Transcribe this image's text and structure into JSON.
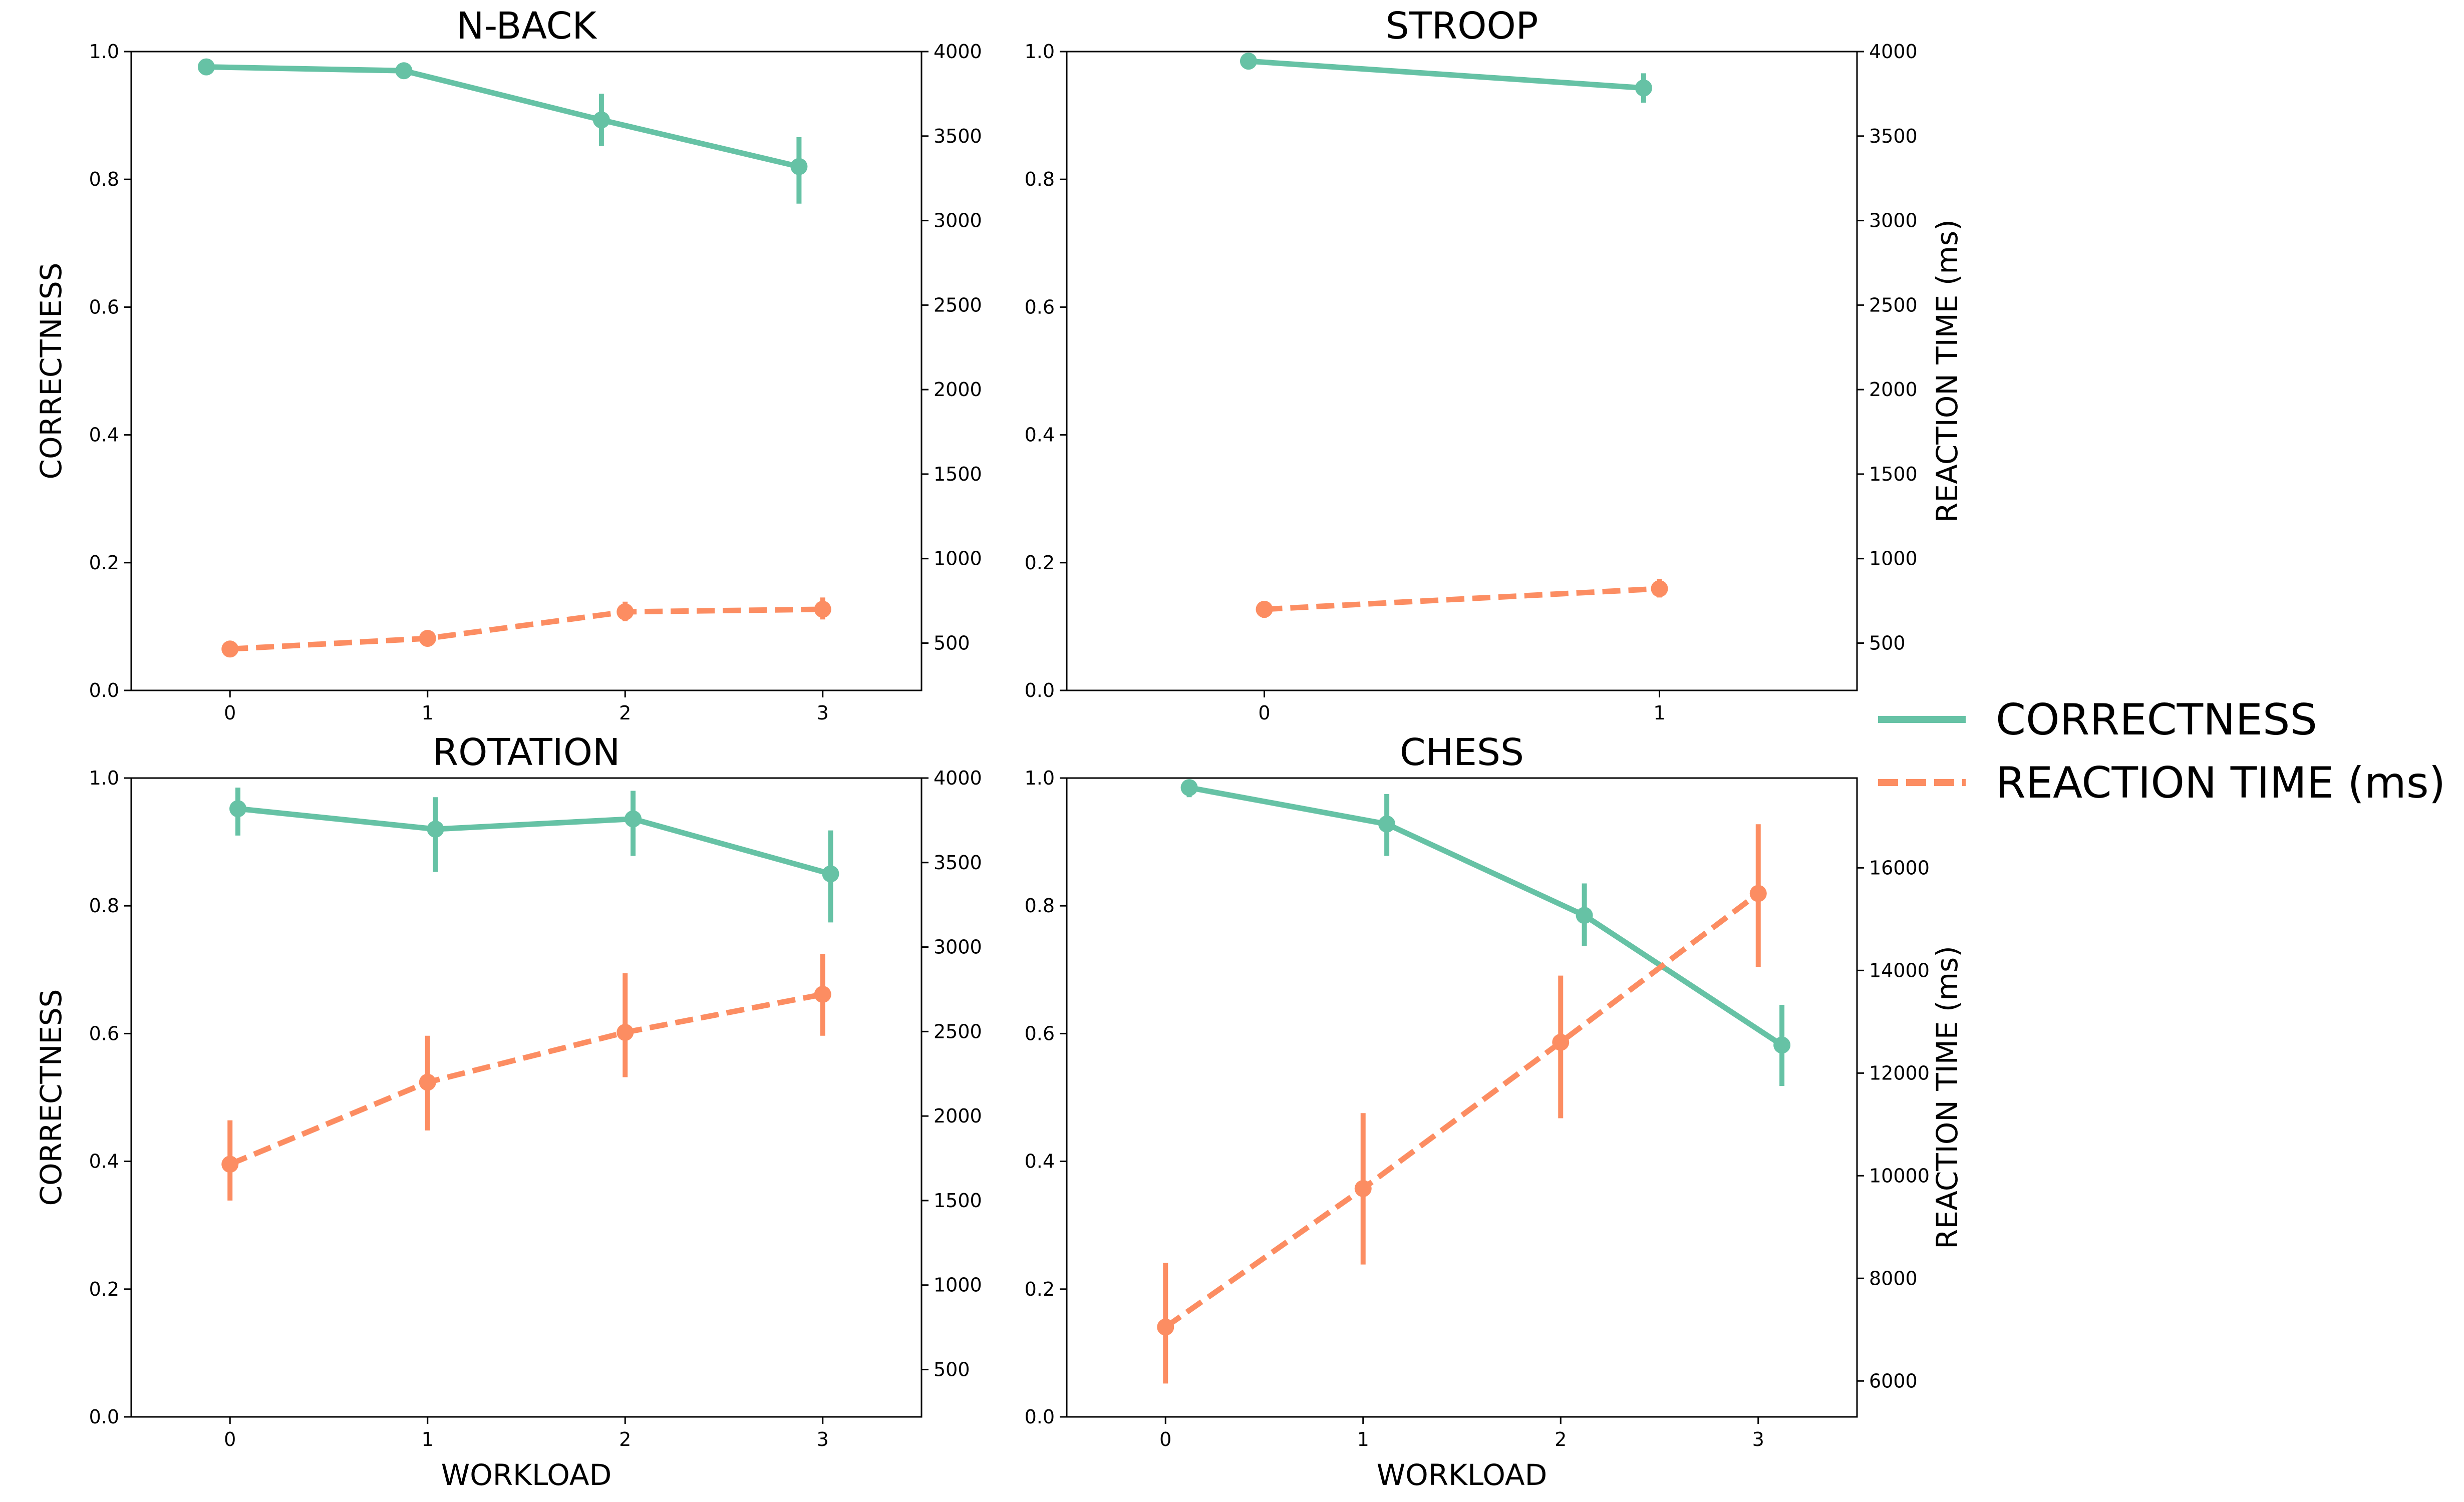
{
  "colors": {
    "correctness": "#66c2a5",
    "reaction_time": "#fc8d62"
  },
  "legend": {
    "placement": "right",
    "entries": [
      {
        "label": "CORRECTNESS",
        "style": "solid",
        "color": "#66c2a5"
      },
      {
        "label": "REACTION TIME (ms)",
        "style": "dashed",
        "color": "#fc8d62"
      }
    ]
  },
  "chart_data": [
    {
      "type": "line",
      "title": "N-BACK",
      "xlabel": "",
      "ylabel": "CORRECTNESS",
      "y2label": "",
      "x": [
        0,
        1,
        2,
        3
      ],
      "xticks": [
        "0",
        "1",
        "2",
        "3"
      ],
      "xlim": [
        -0.5,
        3.5
      ],
      "ylim": [
        0,
        1
      ],
      "yticks": [
        "0.0",
        "0.2",
        "0.4",
        "0.6",
        "0.8",
        "1.0"
      ],
      "y2lim": [
        220,
        4000
      ],
      "y2ticks": [
        "500",
        "1000",
        "1500",
        "2000",
        "2500",
        "3000",
        "3500",
        "4000"
      ],
      "series": [
        {
          "name": "CORRECTNESS",
          "axis": "left",
          "dodge": -0.12,
          "values": [
            0.976,
            0.97,
            0.893,
            0.82
          ],
          "ci_low": [
            0.972,
            0.963,
            0.852,
            0.762
          ],
          "ci_high": [
            0.98,
            0.977,
            0.934,
            0.866
          ]
        },
        {
          "name": "REACTION TIME (ms)",
          "axis": "right",
          "dodge": 0.0,
          "values": [
            465,
            528,
            685,
            700
          ],
          "ci_low": [
            455,
            510,
            630,
            640
          ],
          "ci_high": [
            475,
            546,
            745,
            770
          ]
        }
      ]
    },
    {
      "type": "line",
      "title": "STROOP",
      "xlabel": "",
      "ylabel": "",
      "y2label": "REACTION TIME (ms)",
      "x": [
        0,
        1
      ],
      "xticks": [
        "0",
        "1"
      ],
      "xlim": [
        -0.5,
        1.5
      ],
      "ylim": [
        0,
        1
      ],
      "yticks": [
        "0.0",
        "0.2",
        "0.4",
        "0.6",
        "0.8",
        "1.0"
      ],
      "y2lim": [
        220,
        4000
      ],
      "y2ticks": [
        "500",
        "1000",
        "1500",
        "2000",
        "2500",
        "3000",
        "3500",
        "4000"
      ],
      "series": [
        {
          "name": "CORRECTNESS",
          "axis": "left",
          "dodge": -0.04,
          "values": [
            0.985,
            0.943
          ],
          "ci_low": [
            0.975,
            0.92
          ],
          "ci_high": [
            0.995,
            0.966
          ]
        },
        {
          "name": "REACTION TIME (ms)",
          "axis": "right",
          "dodge": 0.0,
          "values": [
            700,
            822
          ],
          "ci_low": [
            650,
            770
          ],
          "ci_high": [
            750,
            880
          ]
        }
      ]
    },
    {
      "type": "line",
      "title": "ROTATION",
      "xlabel": "WORKLOAD",
      "ylabel": "CORRECTNESS",
      "y2label": "",
      "x": [
        0,
        1,
        2,
        3
      ],
      "xticks": [
        "0",
        "1",
        "2",
        "3"
      ],
      "xlim": [
        -0.5,
        3.5
      ],
      "ylim": [
        0,
        1
      ],
      "yticks": [
        "0.0",
        "0.2",
        "0.4",
        "0.6",
        "0.8",
        "1.0"
      ],
      "y2lim": [
        220,
        4000
      ],
      "y2ticks": [
        "500",
        "1000",
        "1500",
        "2000",
        "2500",
        "3000",
        "3500",
        "4000"
      ],
      "series": [
        {
          "name": "CORRECTNESS",
          "axis": "left",
          "dodge": 0.04,
          "values": [
            0.952,
            0.92,
            0.936,
            0.85
          ],
          "ci_low": [
            0.91,
            0.853,
            0.878,
            0.774
          ],
          "ci_high": [
            0.985,
            0.97,
            0.98,
            0.918
          ]
        },
        {
          "name": "REACTION TIME (ms)",
          "axis": "right",
          "dodge": 0.0,
          "values": [
            1715,
            2200,
            2495,
            2720
          ],
          "ci_low": [
            1500,
            1915,
            2230,
            2475
          ],
          "ci_high": [
            1975,
            2475,
            2845,
            2960
          ]
        }
      ]
    },
    {
      "type": "line",
      "title": "CHESS",
      "xlabel": "WORKLOAD",
      "ylabel": "",
      "y2label": "REACTION TIME (ms)",
      "x": [
        0,
        1,
        2,
        3
      ],
      "xticks": [
        "0",
        "1",
        "2",
        "3"
      ],
      "xlim": [
        -0.5,
        3.5
      ],
      "ylim": [
        0,
        1
      ],
      "yticks": [
        "0.0",
        "0.2",
        "0.4",
        "0.6",
        "0.8",
        "1.0"
      ],
      "y2lim": [
        5300,
        17750
      ],
      "y2ticks": [
        "6000",
        "8000",
        "10000",
        "12000",
        "14000",
        "16000"
      ],
      "series": [
        {
          "name": "CORRECTNESS",
          "axis": "left",
          "dodge": 0.12,
          "values": [
            0.985,
            0.928,
            0.785,
            0.582
          ],
          "ci_low": [
            0.97,
            0.878,
            0.737,
            0.518
          ],
          "ci_high": [
            0.996,
            0.975,
            0.835,
            0.645
          ]
        },
        {
          "name": "REACTION TIME (ms)",
          "axis": "right",
          "dodge": 0.0,
          "values": [
            7050,
            9750,
            12600,
            15500
          ],
          "ci_low": [
            5950,
            8270,
            11120,
            14070
          ],
          "ci_high": [
            8300,
            11220,
            13900,
            16850
          ]
        }
      ]
    }
  ]
}
